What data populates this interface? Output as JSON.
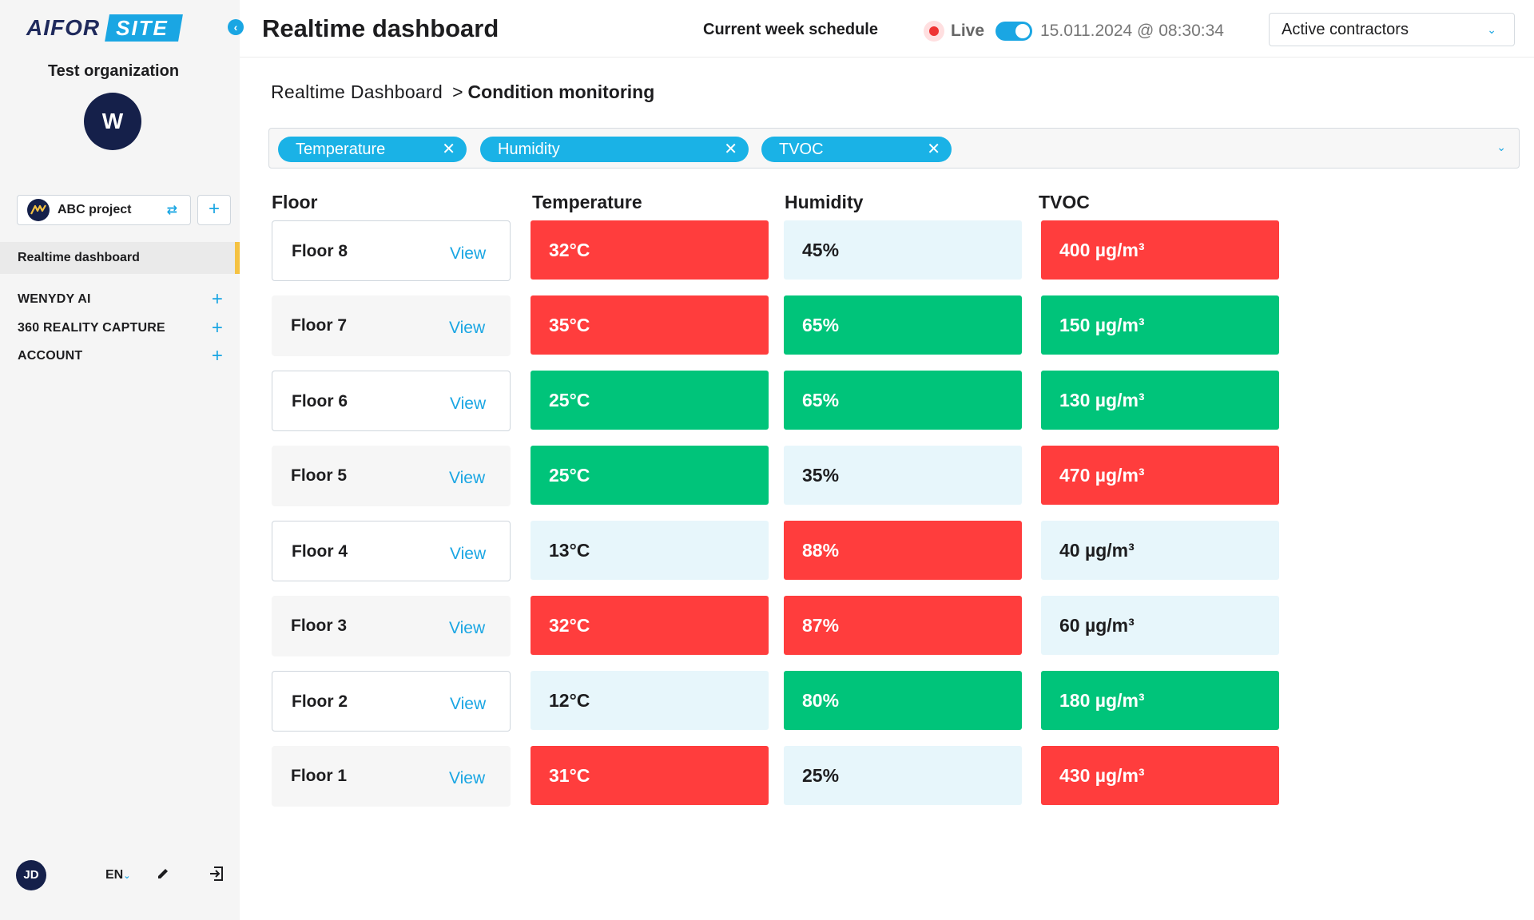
{
  "brand": {
    "part1": "AIFOR",
    "part2": "SITE",
    "accent": "#1aa6e3"
  },
  "sidebar": {
    "organization": "Test organization",
    "org_avatar": "W",
    "project": "ABC project",
    "active_item": "Realtime dashboard",
    "sections": [
      {
        "label": "WENYDY AI"
      },
      {
        "label": "360 REALITY CAPTURE"
      },
      {
        "label": "ACCOUNT"
      }
    ],
    "user_initials": "JD",
    "language": "EN"
  },
  "header": {
    "title": "Realtime dashboard",
    "week_schedule": "Current week schedule",
    "live_label": "Live",
    "timestamp": "15.011.2024 @ 08:30:34",
    "contractors": "Active contractors"
  },
  "breadcrumb": {
    "parent": "Realtime Dashboard",
    "separator": ">",
    "current": "Condition monitoring"
  },
  "filters": [
    "Temperature",
    "Humidity",
    "TVOC"
  ],
  "table": {
    "columns": [
      "Floor",
      "Temperature",
      "Humidity",
      "TVOC"
    ],
    "view_label": "View",
    "rows": [
      {
        "floor": "Floor 8",
        "temperature": "32°C",
        "humidity": "45%",
        "tvoc": "400 µg/m³",
        "t_status": "red",
        "h_status": "neutral",
        "v_status": "red"
      },
      {
        "floor": "Floor 7",
        "temperature": "35°C",
        "humidity": "65%",
        "tvoc": "150 µg/m³",
        "t_status": "red",
        "h_status": "green",
        "v_status": "green"
      },
      {
        "floor": "Floor 6",
        "temperature": "25°C",
        "humidity": "65%",
        "tvoc": "130 µg/m³",
        "t_status": "green",
        "h_status": "green",
        "v_status": "green"
      },
      {
        "floor": "Floor 5",
        "temperature": "25°C",
        "humidity": "35%",
        "tvoc": "470 µg/m³",
        "t_status": "green",
        "h_status": "neutral",
        "v_status": "red"
      },
      {
        "floor": "Floor 4",
        "temperature": "13°C",
        "humidity": "88%",
        "tvoc": "40 µg/m³",
        "t_status": "neutral",
        "h_status": "red",
        "v_status": "neutral"
      },
      {
        "floor": "Floor 3",
        "temperature": "32°C",
        "humidity": "87%",
        "tvoc": "60 µg/m³",
        "t_status": "red",
        "h_status": "red",
        "v_status": "neutral"
      },
      {
        "floor": "Floor 2",
        "temperature": "12°C",
        "humidity": "80%",
        "tvoc": "180 µg/m³",
        "t_status": "neutral",
        "h_status": "green",
        "v_status": "green"
      },
      {
        "floor": "Floor 1",
        "temperature": "31°C",
        "humidity": "25%",
        "tvoc": "430 µg/m³",
        "t_status": "red",
        "h_status": "neutral",
        "v_status": "red"
      }
    ]
  },
  "colors": {
    "red": "#ff3d3d",
    "green": "#00c47a",
    "neutral": "#e7f6fb",
    "accent": "#1aa6e3",
    "navy": "#15204a",
    "highlight": "#f5c242"
  }
}
